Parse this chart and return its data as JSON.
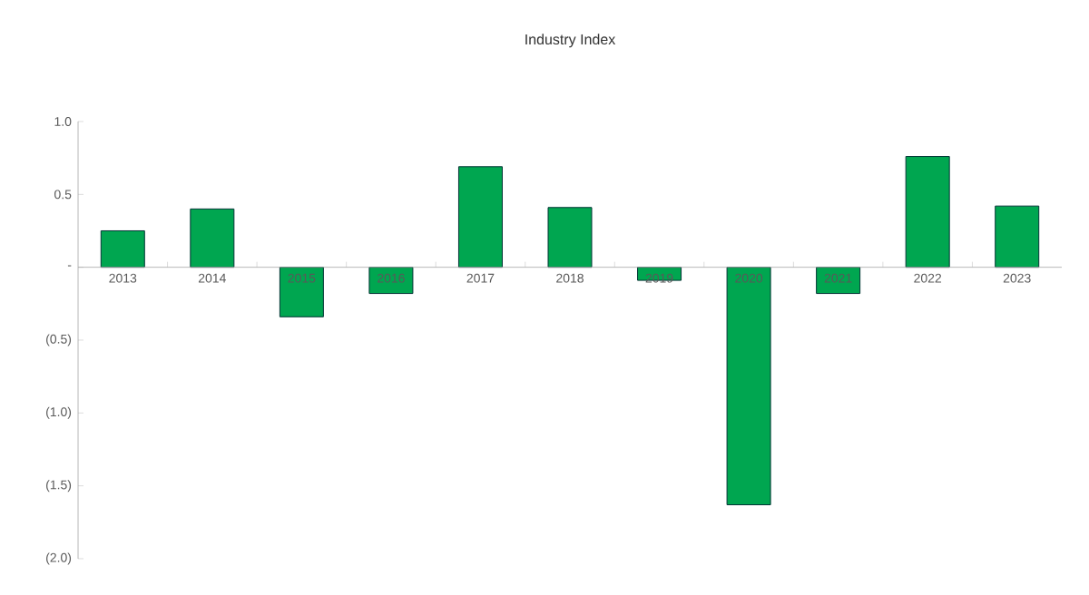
{
  "chart_data": {
    "type": "bar",
    "title": "Industry Index",
    "categories": [
      "2013",
      "2014",
      "2015",
      "2016",
      "2017",
      "2018",
      "2019",
      "2020",
      "2021",
      "2022",
      "2023"
    ],
    "values": [
      0.25,
      0.4,
      -0.34,
      -0.18,
      0.69,
      0.41,
      -0.09,
      -1.63,
      -0.18,
      0.76,
      0.42
    ],
    "color": "#00a650",
    "ylim": [
      -2.0,
      1.0
    ],
    "yticks": [
      {
        "value": -2.0,
        "label": "(2.0)"
      },
      {
        "value": -1.5,
        "label": "(1.5)"
      },
      {
        "value": -1.0,
        "label": "(1.0)"
      },
      {
        "value": -0.5,
        "label": "(0.5)"
      },
      {
        "value": 0,
        "label": "-"
      },
      {
        "value": 0.5,
        "label": "0.5"
      },
      {
        "value": 1.0,
        "label": "1.0"
      }
    ],
    "grid": false
  }
}
